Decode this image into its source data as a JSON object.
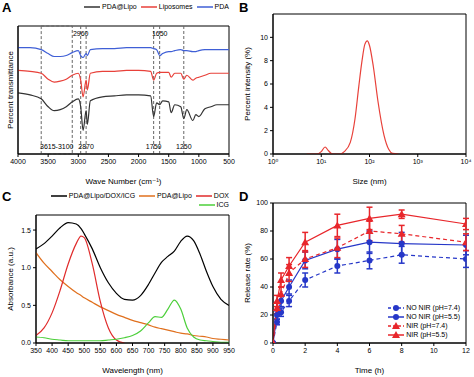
{
  "chart_data": [
    {
      "type": "line",
      "title": "A",
      "x_label": "Wave Number (cm⁻¹)",
      "y_label": "Percent transmittance",
      "x": [
        4000,
        3800,
        3615,
        3500,
        3400,
        3300,
        3200,
        3100,
        3000,
        2960,
        2920,
        2870,
        2850,
        2800,
        2600,
        2400,
        2200,
        2000,
        1800,
        1750,
        1700,
        1650,
        1600,
        1500,
        1460,
        1400,
        1300,
        1250,
        1200,
        1100,
        1050,
        1000,
        900,
        800,
        700,
        600,
        500
      ],
      "xlim": [
        4000,
        500
      ],
      "xticks": [
        4000,
        3500,
        3000,
        2500,
        2000,
        1500,
        1000,
        500
      ],
      "ylim": [
        -20,
        110
      ],
      "tick_labels": "x",
      "legend": "upper right",
      "series": [
        {
          "name": "PDA@Lipo",
          "color": "#333333",
          "values": [
            42,
            40,
            36,
            28,
            24,
            25,
            28,
            33,
            36,
            28,
            4,
            24,
            10,
            34,
            38,
            39,
            40,
            40,
            39,
            18,
            32,
            30,
            34,
            33,
            22,
            30,
            28,
            16,
            25,
            14,
            20,
            18,
            26,
            28,
            30,
            30,
            30
          ]
        },
        {
          "name": "Liposomes",
          "color": "#e8413a",
          "values": [
            65,
            64,
            62,
            56,
            53,
            54,
            56,
            60,
            62,
            55,
            38,
            55,
            45,
            62,
            64,
            64,
            65,
            65,
            64,
            55,
            62,
            63,
            63,
            63,
            58,
            62,
            62,
            56,
            60,
            55,
            57,
            58,
            60,
            62,
            62,
            62,
            62
          ]
        },
        {
          "name": "PDA",
          "color": "#3f5fd6",
          "values": [
            88,
            88,
            86,
            82,
            79,
            79,
            80,
            83,
            85,
            80,
            78,
            82,
            80,
            86,
            87,
            87,
            88,
            88,
            88,
            87,
            86,
            80,
            82,
            84,
            84,
            85,
            86,
            85,
            85,
            84,
            84,
            85,
            86,
            86,
            86,
            86,
            86
          ]
        }
      ],
      "annotations": [
        {
          "label": "3615-3100",
          "x": [
            3615,
            3100
          ]
        },
        {
          "label": "2960",
          "x": 2960
        },
        {
          "label": "2870",
          "x": 2870
        },
        {
          "label": "1650",
          "x": 1650
        },
        {
          "label": "1750",
          "x": 1750
        },
        {
          "label": "1250",
          "x": 1250
        }
      ]
    },
    {
      "type": "line",
      "title": "B",
      "x_label": "Size (nm)",
      "y_label": "Percent intensity (%)",
      "log": "x",
      "x": [
        5,
        8,
        10,
        12,
        14,
        17,
        20,
        25,
        30,
        40,
        50,
        60,
        70,
        80,
        90,
        100,
        120,
        150,
        200,
        250,
        300,
        400
      ],
      "values": [
        0,
        0,
        0.2,
        0.6,
        0.3,
        0,
        0,
        0,
        0.2,
        1,
        3,
        5.8,
        8,
        9.4,
        9.7,
        9.3,
        7.5,
        4.5,
        1.6,
        0.4,
        0.05,
        0
      ],
      "color": "#e8413a",
      "xlim": [
        1,
        10000
      ],
      "xticks": [
        {
          "value": 1,
          "label": "10⁰"
        },
        {
          "value": 10,
          "label": "10¹"
        },
        {
          "value": 100,
          "label": "10²"
        },
        {
          "value": 1000,
          "label": "10³"
        },
        {
          "value": 10000,
          "label": "10⁴"
        }
      ],
      "ylim": [
        0,
        12
      ],
      "yticks": [
        0,
        2,
        4,
        6,
        8,
        10
      ]
    },
    {
      "type": "line",
      "title": "C",
      "x_label": "Wavelength (nm)",
      "y_label": "Absorbance (a.u.)",
      "legend": "upper right",
      "x": [
        350,
        375,
        400,
        425,
        450,
        475,
        490,
        500,
        525,
        550,
        575,
        600,
        625,
        650,
        675,
        700,
        720,
        740,
        760,
        780,
        800,
        820,
        840,
        860,
        880,
        900,
        925,
        950
      ],
      "xlim": [
        350,
        950
      ],
      "xticks": [
        350,
        400,
        450,
        500,
        550,
        600,
        650,
        700,
        750,
        800,
        850,
        900,
        950
      ],
      "ylim": [
        0,
        1.7
      ],
      "yticks": [
        {
          "value": 0,
          "label": "0.0"
        },
        0.5,
        {
          "value": 1,
          "label": "1.0"
        },
        1.5
      ],
      "series": [
        {
          "name": "PDA@Lipo/DOX/ICG",
          "color": "#000000",
          "values": [
            1.25,
            1.32,
            1.42,
            1.53,
            1.6,
            1.58,
            1.52,
            1.45,
            1.25,
            1.0,
            0.8,
            0.66,
            0.58,
            0.57,
            0.63,
            0.78,
            0.93,
            1.07,
            1.15,
            1.22,
            1.35,
            1.42,
            1.36,
            1.18,
            0.95,
            0.75,
            0.58,
            0.5
          ]
        },
        {
          "name": "PDA@Lipo",
          "color": "#e0701e",
          "values": [
            1.2,
            1.06,
            0.95,
            0.84,
            0.75,
            0.67,
            0.63,
            0.6,
            0.54,
            0.48,
            0.43,
            0.38,
            0.34,
            0.3,
            0.27,
            0.24,
            0.21,
            0.19,
            0.17,
            0.15,
            0.13,
            0.12,
            0.1,
            0.09,
            0.08,
            0.06,
            0.05,
            0.04
          ]
        },
        {
          "name": "DOX",
          "color": "#e02b2b",
          "values": [
            0.1,
            0.2,
            0.4,
            0.7,
            1.05,
            1.32,
            1.42,
            1.4,
            1.05,
            0.55,
            0.2,
            0.04,
            0,
            null,
            null,
            null,
            null,
            null,
            null,
            null,
            null,
            null,
            null,
            null,
            null,
            null,
            null,
            null
          ]
        },
        {
          "name": "ICG",
          "color": "#4ccf3a",
          "values": [
            0.08,
            0.07,
            0.05,
            0.04,
            0.03,
            0.03,
            0.03,
            0.03,
            0.03,
            0.03,
            0.04,
            0.05,
            0.07,
            0.1,
            0.16,
            0.27,
            0.35,
            0.34,
            0.45,
            0.57,
            0.45,
            0.2,
            0.08,
            0.04,
            0.03,
            0.02,
            0.01,
            0.01
          ]
        }
      ]
    },
    {
      "type": "line",
      "title": "D",
      "x_label": "Time (h)",
      "y_label": "Release rate (%)",
      "legend": "lower right",
      "x": [
        0,
        0.25,
        0.5,
        1,
        2,
        4,
        6,
        8,
        12
      ],
      "xlim": [
        0,
        12
      ],
      "xticks": [
        0,
        2,
        4,
        6,
        8,
        10,
        12
      ],
      "ylim": [
        0,
        100
      ],
      "yticks": [
        0,
        20,
        40,
        60,
        80,
        100
      ],
      "series": [
        {
          "name": "NO NIR (pH=7.4)",
          "color": "#2637c8",
          "marker": "circle",
          "line_style": "dashed",
          "values": [
            0,
            15,
            22,
            30,
            45,
            55,
            59,
            63,
            60
          ],
          "errors": [
            0,
            2,
            3,
            4,
            5,
            5,
            6,
            6,
            6
          ]
        },
        {
          "name": "NO NIR (pH=5.5)",
          "color": "#2637c8",
          "marker": "circle",
          "line_style": "solid",
          "values": [
            0,
            20,
            30,
            40,
            59,
            67,
            72,
            71,
            70
          ],
          "errors": [
            0,
            3,
            4,
            5,
            6,
            7,
            8,
            8,
            7
          ]
        },
        {
          "name": "NIR (pH=7.4)",
          "color": "#e8262b",
          "marker": "triangle",
          "line_style": "dashed",
          "values": [
            0,
            25,
            35,
            50,
            60,
            68,
            80,
            78,
            72
          ],
          "errors": [
            0,
            4,
            5,
            6,
            6,
            7,
            7,
            6,
            6
          ]
        },
        {
          "name": "NIR (pH=5.5)",
          "color": "#e8262b",
          "marker": "triangle",
          "line_style": "solid",
          "values": [
            0,
            30,
            45,
            55,
            72,
            84,
            89,
            92,
            85
          ],
          "errors": [
            0,
            4,
            5,
            6,
            7,
            8,
            8,
            3,
            4
          ]
        }
      ]
    }
  ]
}
